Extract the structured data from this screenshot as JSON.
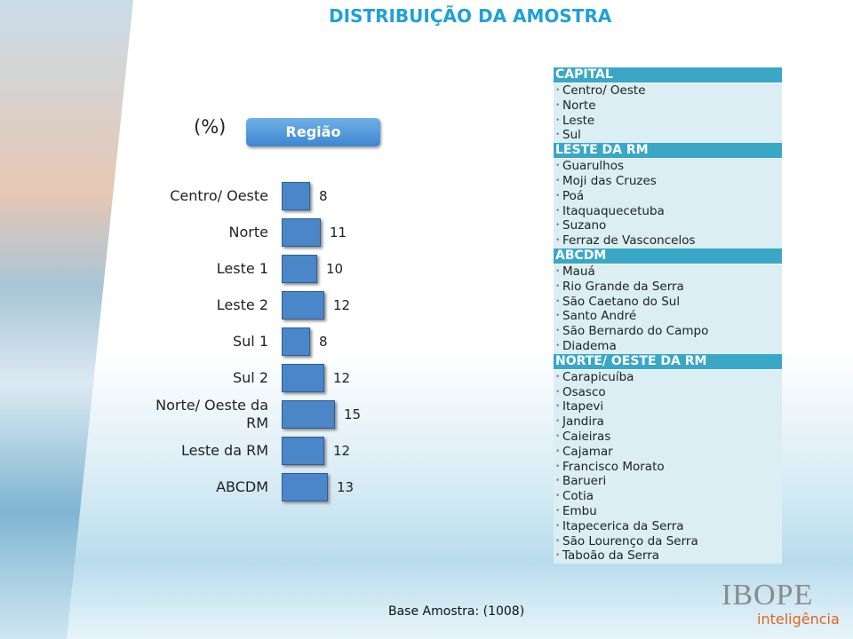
{
  "header": {
    "title": "DISTRIBUIÇÃO DA AMOSTRA"
  },
  "unit_label": "(%)",
  "button": "Região",
  "chart_data": {
    "type": "bar",
    "orientation": "horizontal",
    "color": "#4a86c8",
    "categories": [
      "Centro/ Oeste",
      "Norte",
      "Leste 1",
      "Leste 2",
      "Sul 1",
      "Sul 2",
      "Norte/ Oeste da RM",
      "Leste da RM",
      "ABCDM"
    ],
    "values": [
      8,
      11,
      10,
      12,
      8,
      12,
      15,
      12,
      13
    ]
  },
  "regions": [
    {
      "name": "CAPITAL",
      "items": [
        "Centro/ Oeste",
        "Norte",
        "Leste",
        "Sul"
      ]
    },
    {
      "name": "LESTE DA RM",
      "items": [
        "Guarulhos",
        "Moji das Cruzes",
        "Poá",
        "Itaquaquecetuba",
        "Suzano",
        "Ferraz de Vasconcelos"
      ]
    },
    {
      "name": "ABCDM",
      "items": [
        "Mauá",
        "Rio Grande da Serra",
        "São Caetano do Sul",
        "Santo André",
        "São Bernardo do Campo",
        "Diadema"
      ]
    },
    {
      "name": "NORTE/ OESTE DA RM",
      "items": [
        "Carapicuíba",
        "Osasco",
        "Itapevi",
        "Jandira",
        "Caieiras",
        "Cajamar",
        "Francisco Morato",
        "Barueri",
        "Cotia",
        "Embu",
        "Itapecerica da Serra",
        "São Lourenço da Serra",
        "Taboão da Serra"
      ]
    }
  ],
  "footer": {
    "base": "Base Amostra: (1008)",
    "logo": "IBOPE",
    "logo_sub": "inteligência"
  }
}
